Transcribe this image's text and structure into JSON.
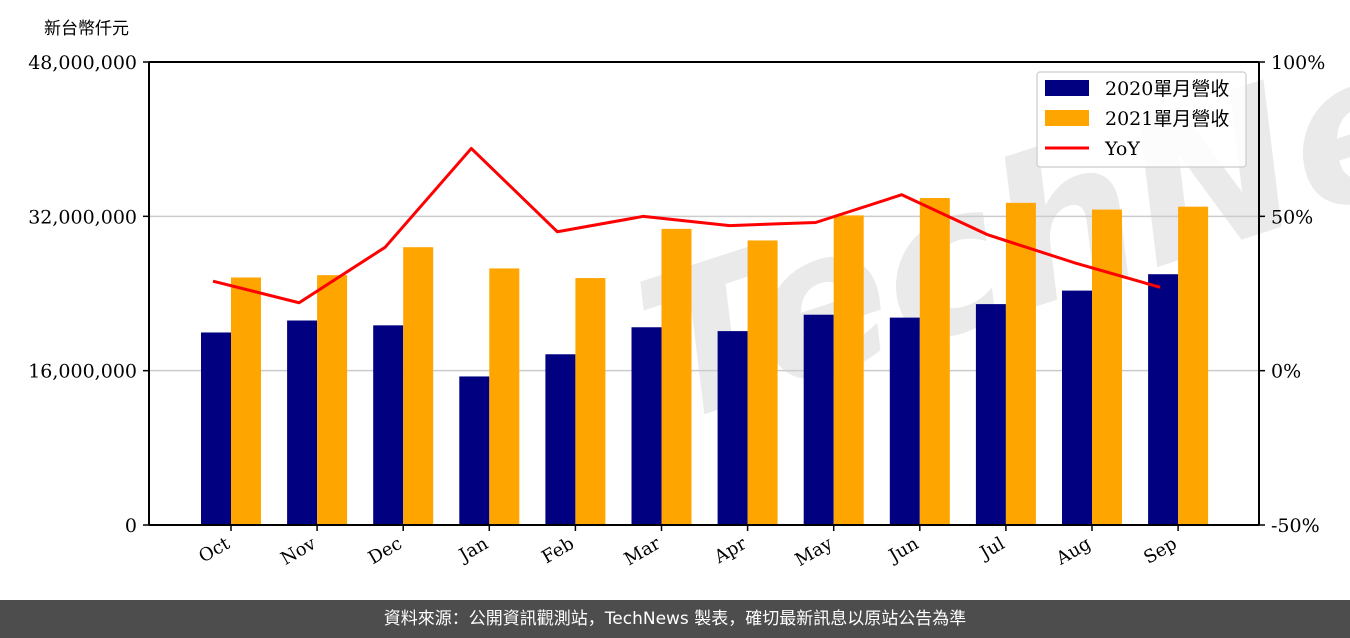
{
  "chart_data": {
    "type": "bar",
    "title": "",
    "ylabel": "新台幣仟元",
    "xlabel": "",
    "categories": [
      "Oct",
      "Nov",
      "Dec",
      "Jan",
      "Feb",
      "Mar",
      "Apr",
      "May",
      "Jun",
      "Jul",
      "Aug",
      "Sep"
    ],
    "series": [
      {
        "name": "2020單月營收",
        "type": "bar",
        "color": "#000080",
        "axis": "left",
        "values": [
          19960000,
          21200000,
          20700000,
          15400000,
          17700000,
          20500000,
          20100000,
          21800000,
          21500000,
          22900000,
          24300000,
          26000000
        ]
      },
      {
        "name": "2021單月營收",
        "type": "bar",
        "color": "#FFA500",
        "axis": "left",
        "values": [
          25660000,
          25900000,
          28800000,
          26600000,
          25600000,
          30700000,
          29500000,
          32100000,
          33900000,
          33400000,
          32700000,
          33000000
        ]
      },
      {
        "name": "YoY",
        "type": "line",
        "color": "#FF0000",
        "axis": "right",
        "values": [
          29,
          22,
          40,
          72,
          45,
          50,
          47,
          48,
          57,
          44,
          35,
          27
        ]
      }
    ],
    "ylim": [
      0,
      48000000
    ],
    "y_ticks": [
      "0",
      "16,000,000",
      "32,000,000",
      "48,000,000"
    ],
    "y_tick_values": [
      0,
      16000000,
      32000000,
      48000000
    ],
    "y2lim": [
      -50,
      100
    ],
    "y2_ticks": [
      "-50%",
      "0%",
      "50%",
      "100%"
    ],
    "y2_tick_values": [
      -50,
      0,
      50,
      100
    ],
    "grid": true,
    "legend_position": "upper right"
  },
  "header": {
    "unit_label": "新台幣仟元"
  },
  "watermark": "TechNews",
  "footer": {
    "text": "資料來源：公開資訊觀測站，TechNews 製表，確切最新訊息以原站公告為準"
  }
}
